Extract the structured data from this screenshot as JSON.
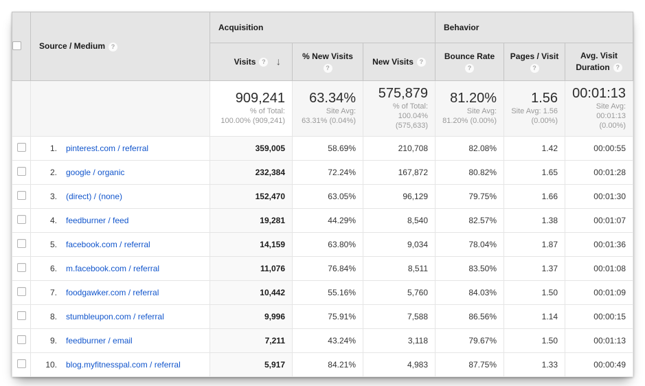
{
  "colors": {
    "link": "#1155cc",
    "header_bg": "#e5e5e5",
    "sorted_col_bg": "#f9f9f9"
  },
  "icons": {
    "help": "?",
    "sort_desc": "↓"
  },
  "table": {
    "header": {
      "source_medium_label": "Source / Medium",
      "groups": [
        {
          "label": "Acquisition"
        },
        {
          "label": "Behavior"
        }
      ],
      "cols": [
        {
          "id": "visits",
          "label": "Visits",
          "sorted": "descending"
        },
        {
          "id": "pct_new_visits",
          "label": "% New Visits"
        },
        {
          "id": "new_visits",
          "label": "New Visits"
        },
        {
          "id": "bounce_rate",
          "label": "Bounce Rate"
        },
        {
          "id": "pages_visit",
          "label": "Pages / Visit"
        },
        {
          "id": "avg_visit_duration",
          "label": "Avg. Visit Duration"
        }
      ]
    },
    "summary": {
      "visits": {
        "value": "909,241",
        "sub1": "% of Total:",
        "sub2": "100.00% (909,241)"
      },
      "pct_new_visits": {
        "value": "63.34%",
        "sub1": "Site Avg:",
        "sub2": "63.31% (0.04%)"
      },
      "new_visits": {
        "value": "575,879",
        "sub1": "% of Total:",
        "sub2": "100.04% (575,633)"
      },
      "bounce_rate": {
        "value": "81.20%",
        "sub1": "Site Avg:",
        "sub2": "81.20% (0.00%)"
      },
      "pages_visit": {
        "value": "1.56",
        "sub1": "Site Avg: 1.56",
        "sub2": "(0.00%)"
      },
      "avg_visit_duration": {
        "value": "00:01:13",
        "sub1": "Site Avg:",
        "sub2": "00:01:13 (0.00%)"
      }
    },
    "rows": [
      {
        "rank": "1.",
        "source": "pinterest.com / referral",
        "visits": "359,005",
        "pct_new": "58.69%",
        "new_visits": "210,708",
        "bounce": "82.08%",
        "pages": "1.42",
        "duration": "00:00:55"
      },
      {
        "rank": "2.",
        "source": "google / organic",
        "visits": "232,384",
        "pct_new": "72.24%",
        "new_visits": "167,872",
        "bounce": "80.82%",
        "pages": "1.65",
        "duration": "00:01:28"
      },
      {
        "rank": "3.",
        "source": "(direct) / (none)",
        "visits": "152,470",
        "pct_new": "63.05%",
        "new_visits": "96,129",
        "bounce": "79.75%",
        "pages": "1.66",
        "duration": "00:01:30"
      },
      {
        "rank": "4.",
        "source": "feedburner / feed",
        "visits": "19,281",
        "pct_new": "44.29%",
        "new_visits": "8,540",
        "bounce": "82.57%",
        "pages": "1.38",
        "duration": "00:01:07"
      },
      {
        "rank": "5.",
        "source": "facebook.com / referral",
        "visits": "14,159",
        "pct_new": "63.80%",
        "new_visits": "9,034",
        "bounce": "78.04%",
        "pages": "1.87",
        "duration": "00:01:36"
      },
      {
        "rank": "6.",
        "source": "m.facebook.com / referral",
        "visits": "11,076",
        "pct_new": "76.84%",
        "new_visits": "8,511",
        "bounce": "83.50%",
        "pages": "1.37",
        "duration": "00:01:08"
      },
      {
        "rank": "7.",
        "source": "foodgawker.com / referral",
        "visits": "10,442",
        "pct_new": "55.16%",
        "new_visits": "5,760",
        "bounce": "84.03%",
        "pages": "1.50",
        "duration": "00:01:09"
      },
      {
        "rank": "8.",
        "source": "stumbleupon.com / referral",
        "visits": "9,996",
        "pct_new": "75.91%",
        "new_visits": "7,588",
        "bounce": "86.56%",
        "pages": "1.14",
        "duration": "00:00:15"
      },
      {
        "rank": "9.",
        "source": "feedburner / email",
        "visits": "7,211",
        "pct_new": "43.24%",
        "new_visits": "3,118",
        "bounce": "79.67%",
        "pages": "1.50",
        "duration": "00:01:13"
      },
      {
        "rank": "10.",
        "source": "blog.myfitnesspal.com / referral",
        "visits": "5,917",
        "pct_new": "84.21%",
        "new_visits": "4,983",
        "bounce": "87.75%",
        "pages": "1.33",
        "duration": "00:00:49"
      }
    ]
  }
}
